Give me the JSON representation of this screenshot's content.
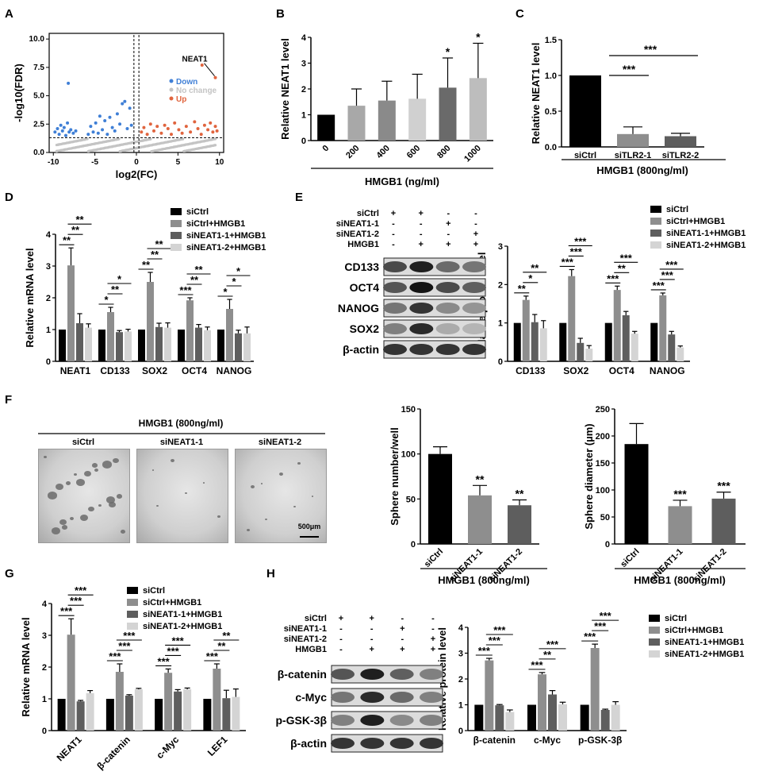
{
  "panels": {
    "a": "A",
    "b": "B",
    "c": "C",
    "d": "D",
    "e": "E",
    "f": "F",
    "g": "G",
    "h": "H"
  },
  "colors": {
    "black": "#000000",
    "g1": "#8e8e8e",
    "g2": "#5e5e5e",
    "g3": "#d4d4d4",
    "down": "#3f7fd6",
    "up": "#e0643e",
    "nochange": "#c4c4c4"
  },
  "chart_data": [
    {
      "id": "A",
      "type": "scatter",
      "title": "",
      "xlabel": "log2(FC)",
      "ylabel": "-log10(FDR)",
      "xlim": [
        -10.5,
        10.5
      ],
      "ylim": [
        0,
        10.5
      ],
      "xticks": [
        "-10",
        "-5",
        "0",
        "5",
        "10"
      ],
      "yticks": [
        "0.0",
        "2.5",
        "5.0",
        "7.5",
        "10.0"
      ],
      "legend": [
        "Down",
        "No change",
        "Up"
      ],
      "annotation": "NEAT1",
      "annotation_point": [
        9.5,
        6.6
      ],
      "threshold_y": 1.3,
      "threshold_x": [
        -0.3,
        0.3
      ],
      "points_down": [
        [
          -9.8,
          1.8
        ],
        [
          -9.5,
          2.1
        ],
        [
          -9.3,
          1.6
        ],
        [
          -9.1,
          2.4
        ],
        [
          -8.9,
          1.9
        ],
        [
          -8.7,
          2.2
        ],
        [
          -8.5,
          1.5
        ],
        [
          -8.3,
          2.6
        ],
        [
          -8.1,
          1.8
        ],
        [
          -8.2,
          6.1
        ],
        [
          -7.9,
          2.0
        ],
        [
          -7.6,
          1.7
        ],
        [
          -7.3,
          1.9
        ],
        [
          -5.8,
          1.6
        ],
        [
          -5.5,
          2.3
        ],
        [
          -5.2,
          1.8
        ],
        [
          -4.9,
          2.6
        ],
        [
          -4.6,
          1.7
        ],
        [
          -4.4,
          3.2
        ],
        [
          -4.1,
          2.0
        ],
        [
          -3.8,
          2.8
        ],
        [
          -3.5,
          1.6
        ],
        [
          -3.2,
          3.1
        ],
        [
          -2.9,
          2.2
        ],
        [
          -2.6,
          1.9
        ],
        [
          -2.3,
          3.4
        ],
        [
          -2.0,
          2.5
        ],
        [
          -1.7,
          4.3
        ],
        [
          -1.4,
          4.5
        ],
        [
          -1.1,
          2.1
        ],
        [
          -0.8,
          3.9
        ],
        [
          -0.6,
          2.4
        ]
      ],
      "points_up": [
        [
          0.6,
          1.8
        ],
        [
          0.9,
          2.2
        ],
        [
          1.3,
          1.6
        ],
        [
          1.7,
          2.5
        ],
        [
          2.1,
          1.9
        ],
        [
          2.5,
          2.3
        ],
        [
          3.0,
          1.7
        ],
        [
          3.4,
          2.4
        ],
        [
          3.8,
          2.1
        ],
        [
          4.2,
          1.6
        ],
        [
          4.6,
          2.6
        ],
        [
          5.1,
          2.0
        ],
        [
          5.5,
          1.7
        ],
        [
          6.0,
          2.3
        ],
        [
          6.5,
          1.8
        ],
        [
          7.0,
          2.7
        ],
        [
          7.4,
          2.1
        ],
        [
          7.8,
          1.6
        ],
        [
          8.2,
          2.4
        ],
        [
          8.6,
          2.0
        ],
        [
          8.9,
          2.6
        ],
        [
          9.2,
          1.8
        ],
        [
          9.5,
          2.3
        ],
        [
          9.7,
          1.9
        ],
        [
          7.9,
          7.7
        ],
        [
          9.5,
          6.6
        ]
      ]
    },
    {
      "id": "B",
      "type": "bar",
      "ylabel": "Relative NEAT1 level",
      "xlabel": "HMGB1 (ng/ml)",
      "categories": [
        "0",
        "200",
        "400",
        "600",
        "800",
        "1000"
      ],
      "values": [
        1.0,
        1.35,
        1.55,
        1.62,
        2.05,
        2.42
      ],
      "errors": [
        0,
        0.65,
        0.75,
        0.95,
        1.15,
        1.35
      ],
      "sig": [
        "",
        "",
        "",
        "",
        "*",
        "*"
      ],
      "ylim": [
        0,
        4
      ],
      "yticks": [
        "0",
        "1",
        "2",
        "3",
        "4"
      ],
      "colors": [
        "#000000",
        "#a8a8a8",
        "#8a8a8a",
        "#d0d0d0",
        "#6a6a6a",
        "#bdbdbd"
      ]
    },
    {
      "id": "C",
      "type": "bar",
      "ylabel": "Relative NEAT1 level",
      "xlabel": "HMGB1 (800ng/ml)",
      "categories": [
        "siCtrl",
        "siTLR2-1",
        "siTLR2-2"
      ],
      "values": [
        1.0,
        0.18,
        0.15
      ],
      "errors": [
        0,
        0.1,
        0.04
      ],
      "ylim": [
        0,
        1.5
      ],
      "yticks": [
        "0.0",
        "0.5",
        "1.0",
        "1.5"
      ],
      "brackets": [
        "***",
        "***"
      ],
      "colors": [
        "#000000",
        "#8e8e8e",
        "#5e5e5e"
      ]
    },
    {
      "id": "D",
      "type": "bar",
      "ylabel": "Relative mRNA level",
      "categories": [
        "NEAT1",
        "CD133",
        "SOX2",
        "OCT4",
        "NANOG"
      ],
      "series": [
        {
          "name": "siCtrl",
          "values": [
            1.0,
            1.0,
            1.0,
            1.0,
            1.0
          ]
        },
        {
          "name": "siCtrl+HMGB1",
          "values": [
            3.02,
            1.55,
            2.5,
            1.92,
            1.65
          ]
        },
        {
          "name": "siNEAT1-1+HMGB1",
          "values": [
            1.2,
            0.92,
            1.08,
            1.06,
            0.88
          ]
        },
        {
          "name": "siNEAT1-2+HMGB1",
          "values": [
            1.06,
            0.94,
            1.06,
            0.98,
            0.88
          ]
        }
      ],
      "errors": [
        [
          0,
          0.55,
          0.3,
          0.12
        ],
        [
          0,
          0.15,
          0.05,
          0.07
        ],
        [
          0,
          0.3,
          0.12,
          0.15
        ],
        [
          0,
          0.08,
          0.1,
          0.1
        ],
        [
          0,
          0.3,
          0.1,
          0.2
        ]
      ],
      "sig": [
        [
          "**",
          "**",
          "**"
        ],
        [
          "*",
          "**",
          "*"
        ],
        [
          "**",
          "**",
          "**"
        ],
        [
          "***",
          "**",
          "**"
        ],
        [
          "*",
          "*",
          "*"
        ]
      ],
      "ylim": [
        0,
        4
      ],
      "yticks": [
        "0",
        "1",
        "2",
        "3",
        "4"
      ]
    },
    {
      "id": "E",
      "type": "bar",
      "ylabel": "Relative protein level",
      "categories": [
        "CD133",
        "SOX2",
        "OCT4",
        "NANOG"
      ],
      "series": [
        {
          "name": "siCtrl",
          "values": [
            1.0,
            1.0,
            1.0,
            1.0
          ]
        },
        {
          "name": "siCtrl+HMGB1",
          "values": [
            1.6,
            2.22,
            1.86,
            1.72
          ]
        },
        {
          "name": "siNEAT1-1+HMGB1",
          "values": [
            1.02,
            0.48,
            1.2,
            0.7
          ]
        },
        {
          "name": "siNEAT1-2+HMGB1",
          "values": [
            0.86,
            0.33,
            0.72,
            0.36
          ]
        }
      ],
      "errors": [
        [
          0,
          0.1,
          0.2,
          0.2
        ],
        [
          0,
          0.17,
          0.12,
          0.08
        ],
        [
          0,
          0.1,
          0.1,
          0.06
        ],
        [
          0,
          0.06,
          0.08,
          0.04
        ]
      ],
      "sig": [
        [
          "**",
          "*",
          "**"
        ],
        [
          "***",
          "***",
          "***"
        ],
        [
          "***",
          "**",
          "***"
        ],
        [
          "***",
          "***",
          "***"
        ]
      ],
      "ylim": [
        0,
        3
      ],
      "yticks": [
        "0",
        "1",
        "2",
        "3"
      ]
    },
    {
      "id": "F1",
      "type": "bar",
      "ylabel": "Sphere number/well",
      "xlabel": "HMGB1 (800ng/ml)",
      "categories": [
        "siCtrl",
        "siNEAT1-1",
        "siNEAT1-2"
      ],
      "values": [
        100,
        54,
        43
      ],
      "errors": [
        8,
        11,
        6
      ],
      "sig": [
        "",
        "**",
        "**"
      ],
      "ylim": [
        0,
        150
      ],
      "yticks": [
        "0",
        "50",
        "100",
        "150"
      ],
      "colors": [
        "#000000",
        "#8e8e8e",
        "#5e5e5e"
      ]
    },
    {
      "id": "F2",
      "type": "bar",
      "ylabel": "Sphere diameter (µm)",
      "xlabel": "HMGB1 (800ng/ml)",
      "categories": [
        "siCtrl",
        "siNEAT1-1",
        "siNEAT1-2"
      ],
      "values": [
        185,
        70,
        84
      ],
      "errors": [
        38,
        11,
        12
      ],
      "sig": [
        "",
        "***",
        "***"
      ],
      "ylim": [
        0,
        250
      ],
      "yticks": [
        "0",
        "50",
        "100",
        "150",
        "200",
        "250"
      ],
      "colors": [
        "#000000",
        "#8e8e8e",
        "#5e5e5e"
      ]
    },
    {
      "id": "G",
      "type": "bar",
      "ylabel": "Relative mRNA level",
      "categories": [
        "NEAT1",
        "β-catenin",
        "c-Myc",
        "LEF1"
      ],
      "series": [
        {
          "name": "siCtrl",
          "values": [
            1.0,
            1.0,
            1.0,
            1.0
          ]
        },
        {
          "name": "siCtrl+HMGB1",
          "values": [
            3.02,
            1.85,
            1.82,
            1.95
          ]
        },
        {
          "name": "siNEAT1-1+HMGB1",
          "values": [
            0.92,
            1.1,
            1.23,
            1.02
          ]
        },
        {
          "name": "siNEAT1-2+HMGB1",
          "values": [
            1.18,
            1.3,
            1.3,
            1.06
          ]
        }
      ],
      "errors": [
        [
          0,
          0.5,
          0.03,
          0.08
        ],
        [
          0,
          0.25,
          0.03,
          0.03
        ],
        [
          0,
          0.12,
          0.06,
          0.04
        ],
        [
          0,
          0.15,
          0.25,
          0.25
        ]
      ],
      "sig": [
        [
          "***",
          "***",
          "***"
        ],
        [
          "***",
          "***",
          "***"
        ],
        [
          "***",
          "***",
          "***"
        ],
        [
          "***",
          "**",
          "**"
        ]
      ],
      "ylim": [
        0,
        4
      ],
      "yticks": [
        "0",
        "1",
        "2",
        "3",
        "4"
      ]
    },
    {
      "id": "H",
      "type": "bar",
      "ylabel": "Relative protein level",
      "categories": [
        "β-catenin",
        "c-Myc",
        "p-GSK-3β"
      ],
      "series": [
        {
          "name": "siCtrl",
          "values": [
            1.0,
            1.0,
            1.0
          ]
        },
        {
          "name": "siCtrl+HMGB1",
          "values": [
            2.72,
            2.18,
            3.2
          ]
        },
        {
          "name": "siNEAT1-1+HMGB1",
          "values": [
            0.98,
            1.4,
            0.8
          ]
        },
        {
          "name": "siNEAT1-2+HMGB1",
          "values": [
            0.72,
            1.02,
            1.0
          ]
        }
      ],
      "errors": [
        [
          0,
          0.08,
          0.03,
          0.08
        ],
        [
          0,
          0.07,
          0.15,
          0.08
        ],
        [
          0,
          0.15,
          0.03,
          0.12
        ]
      ],
      "sig": [
        [
          "***",
          "***",
          "***"
        ],
        [
          "***",
          "**",
          "***"
        ],
        [
          "***",
          "***",
          "***"
        ]
      ],
      "ylim": [
        0,
        4
      ],
      "yticks": [
        "0",
        "1",
        "2",
        "3",
        "4"
      ]
    }
  ],
  "legend4": [
    "siCtrl",
    "siCtrl+HMGB1",
    "siNEAT1-1+HMGB1",
    "siNEAT1-2+HMGB1"
  ],
  "blotE": {
    "conditions": [
      {
        "label": "siCtrl",
        "marks": [
          "+",
          "+",
          "-",
          "-"
        ]
      },
      {
        "label": "siNEAT1-1",
        "marks": [
          "-",
          "-",
          "+",
          "-"
        ]
      },
      {
        "label": "siNEAT1-2",
        "marks": [
          "-",
          "-",
          "-",
          "+"
        ]
      },
      {
        "label": "HMGB1",
        "marks": [
          "-",
          "+",
          "+",
          "+"
        ]
      }
    ],
    "bands": [
      {
        "label": "CD133",
        "intensity": [
          0.75,
          0.95,
          0.6,
          0.55
        ]
      },
      {
        "label": "OCT4",
        "intensity": [
          0.7,
          1.0,
          0.75,
          0.65
        ]
      },
      {
        "label": "NANOG",
        "intensity": [
          0.55,
          0.85,
          0.45,
          0.4
        ]
      },
      {
        "label": "SOX2",
        "intensity": [
          0.5,
          0.9,
          0.3,
          0.25
        ]
      },
      {
        "label": "β-actin",
        "intensity": [
          0.85,
          0.85,
          0.85,
          0.85
        ]
      }
    ]
  },
  "blotH": {
    "conditions": [
      {
        "label": "siCtrl",
        "marks": [
          "+",
          "+",
          "-",
          "-"
        ]
      },
      {
        "label": "siNEAT1-1",
        "marks": [
          "-",
          "-",
          "+",
          "-"
        ]
      },
      {
        "label": "siNEAT1-2",
        "marks": [
          "-",
          "-",
          "-",
          "+"
        ]
      },
      {
        "label": "HMGB1",
        "marks": [
          "-",
          "+",
          "+",
          "+"
        ]
      }
    ],
    "bands": [
      {
        "label": "β-catenin",
        "intensity": [
          0.7,
          0.95,
          0.65,
          0.5
        ]
      },
      {
        "label": "c-Myc",
        "intensity": [
          0.55,
          0.9,
          0.6,
          0.5
        ]
      },
      {
        "label": "p-GSK-3β",
        "intensity": [
          0.5,
          0.95,
          0.45,
          0.5
        ]
      },
      {
        "label": "β-actin",
        "intensity": [
          0.85,
          0.85,
          0.85,
          0.85
        ]
      }
    ]
  },
  "micro": {
    "title": "HMGB1 (800ng/ml)",
    "labels": [
      "siCtrl",
      "siNEAT1-1",
      "siNEAT1-2"
    ],
    "scalebar": "500μm"
  }
}
